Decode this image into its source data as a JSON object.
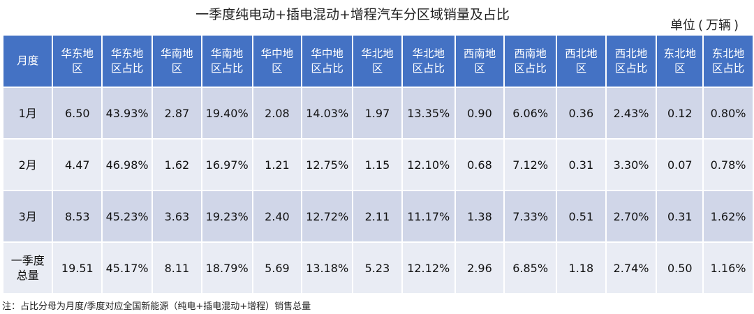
{
  "title": "一季度纯电动+插电混动+增程汽车分区域销量及占比",
  "unit": {
    "label": "单位",
    "value": "万辆"
  },
  "headers": [
    [
      "月度"
    ],
    [
      "华东地",
      "区"
    ],
    [
      "华东地",
      "区占比"
    ],
    [
      "华南地",
      "区"
    ],
    [
      "华南地",
      "区占比"
    ],
    [
      "华中地",
      "区"
    ],
    [
      "华中地",
      "区占比"
    ],
    [
      "华北地",
      "区"
    ],
    [
      "华北地",
      "区占比"
    ],
    [
      "西南地",
      "区"
    ],
    [
      "西南地",
      "区占比"
    ],
    [
      "西北地",
      "区"
    ],
    [
      "西北地",
      "区占比"
    ],
    [
      "东北地",
      "区"
    ],
    [
      "东北地",
      "区占比"
    ]
  ],
  "rows": [
    {
      "label": [
        "1月"
      ],
      "cells": [
        "6.50",
        "43.93%",
        "2.87",
        "19.40%",
        "2.08",
        "14.03%",
        "1.97",
        "13.35%",
        "0.90",
        "6.06%",
        "0.36",
        "2.43%",
        "0.12",
        "0.80%"
      ]
    },
    {
      "label": [
        "2月"
      ],
      "cells": [
        "4.47",
        "46.98%",
        "1.62",
        "16.97%",
        "1.21",
        "12.75%",
        "1.15",
        "12.10%",
        "0.68",
        "7.12%",
        "0.31",
        "3.30%",
        "0.07",
        "0.78%"
      ]
    },
    {
      "label": [
        "3月"
      ],
      "cells": [
        "8.53",
        "45.23%",
        "3.63",
        "19.23%",
        "2.40",
        "12.72%",
        "2.11",
        "11.17%",
        "1.38",
        "7.33%",
        "0.51",
        "2.70%",
        "0.31",
        "1.62%"
      ]
    },
    {
      "label": [
        "一季度",
        "总量"
      ],
      "cells": [
        "19.51",
        "45.17%",
        "8.11",
        "18.79%",
        "5.69",
        "13.18%",
        "5.23",
        "12.12%",
        "2.96",
        "6.85%",
        "1.18",
        "2.74%",
        "0.50",
        "1.16%"
      ]
    }
  ],
  "note": "注：占比分母为月度/季度对应全国新能源（纯电+插电混动+增程）销售总量",
  "colors": {
    "header_bg": "#4472c4",
    "row_odd": "#d0d6e8",
    "row_even": "#e9ecf4",
    "header_text": "#ffffff"
  },
  "chart_data": {
    "type": "table",
    "title": "一季度纯电动+插电混动+增程汽车分区域销量及占比",
    "unit": "万辆",
    "columns": [
      "月度",
      "华东地区",
      "华东地区占比",
      "华南地区",
      "华南地区占比",
      "华中地区",
      "华中地区占比",
      "华北地区",
      "华北地区占比",
      "西南地区",
      "西南地区占比",
      "西北地区",
      "西北地区占比",
      "东北地区",
      "东北地区占比"
    ],
    "rows": [
      [
        "1月",
        6.5,
        "43.93%",
        2.87,
        "19.40%",
        2.08,
        "14.03%",
        1.97,
        "13.35%",
        0.9,
        "6.06%",
        0.36,
        "2.43%",
        0.12,
        "0.80%"
      ],
      [
        "2月",
        4.47,
        "46.98%",
        1.62,
        "16.97%",
        1.21,
        "12.75%",
        1.15,
        "12.10%",
        0.68,
        "7.12%",
        0.31,
        "3.30%",
        0.07,
        "0.78%"
      ],
      [
        "3月",
        8.53,
        "45.23%",
        3.63,
        "19.23%",
        2.4,
        "12.72%",
        2.11,
        "11.17%",
        1.38,
        "7.33%",
        0.51,
        "2.70%",
        0.31,
        "1.62%"
      ],
      [
        "一季度总量",
        19.51,
        "45.17%",
        8.11,
        "18.79%",
        5.69,
        "13.18%",
        5.23,
        "12.12%",
        2.96,
        "6.85%",
        1.18,
        "2.74%",
        0.5,
        "1.16%"
      ]
    ]
  }
}
